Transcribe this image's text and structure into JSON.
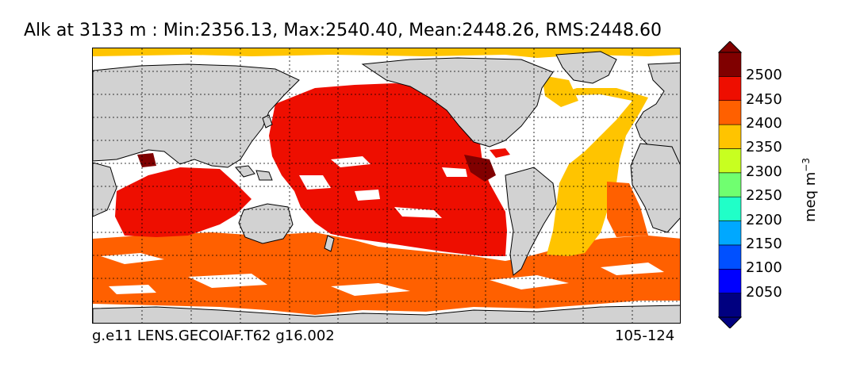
{
  "title": "Alk at 3133 m : Min:2356.13, Max:2540.40, Mean:2448.26, RMS:2448.60",
  "footer": {
    "left": "g.e11 LENS.GECOIAF.T62 g16.002",
    "right": "105-124"
  },
  "colorbar": {
    "label": "meq m",
    "label_exponent": "−3",
    "ticks": [
      "2500",
      "2450",
      "2400",
      "2350",
      "2300",
      "2250",
      "2200",
      "2150",
      "2100",
      "2050"
    ],
    "colors": [
      "#000080",
      "#0000ff",
      "#0050ff",
      "#00a8ff",
      "#20ffc8",
      "#70ff70",
      "#c8ff20",
      "#ffc400",
      "#ff6000",
      "#ee0e00",
      "#800000"
    ],
    "extend": "both"
  },
  "map": {
    "land_color": "#d2d2d2",
    "nodata_color": "#ffffff",
    "grid": "dotted"
  },
  "legend_colors": {
    "red_2450_2500": "#ee0e00",
    "orange_2400_2450": "#ff6000",
    "yellow_2350_2400": "#ffc400",
    "darkred_2500_plus": "#800000"
  }
}
